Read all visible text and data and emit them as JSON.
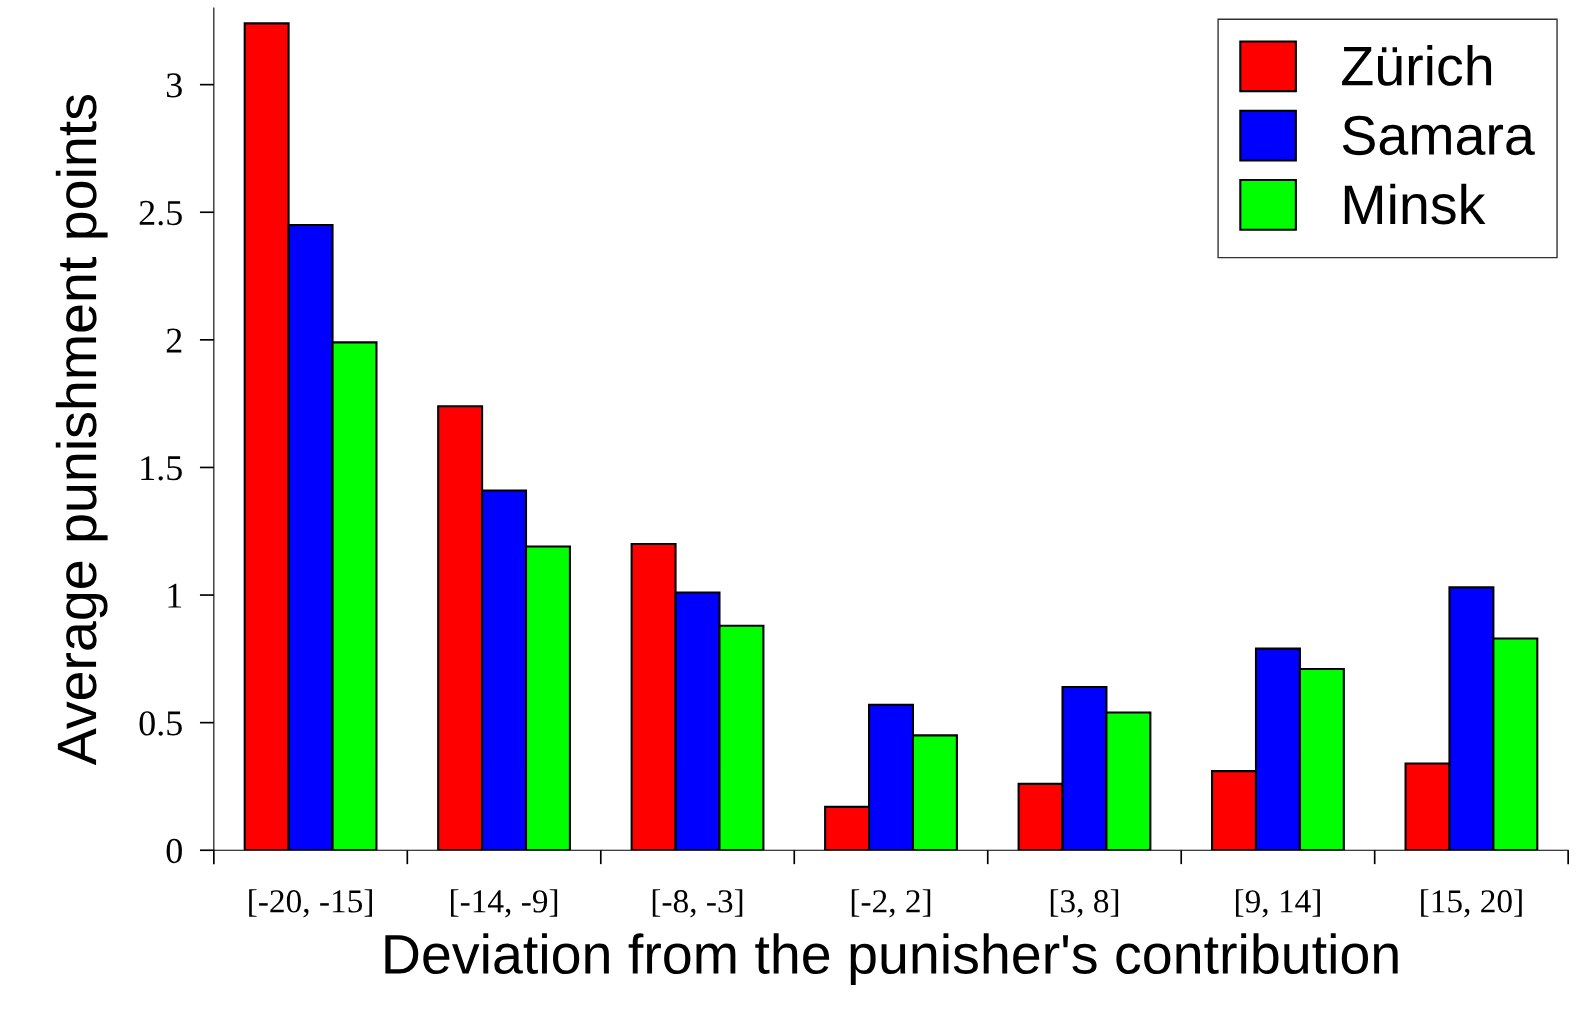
{
  "chart_data": {
    "type": "bar",
    "xlabel": "Deviation from the punisher's contribution",
    "ylabel": "Average punishment points",
    "categories": [
      "[-20, -15]",
      "[-14, -9]",
      "[-8, -3]",
      "[-2, 2]",
      "[3, 8]",
      "[9, 14]",
      "[15, 20]"
    ],
    "series": [
      {
        "name": "Zürich",
        "color": "#ff0000",
        "values": [
          3.24,
          1.74,
          1.2,
          0.17,
          0.26,
          0.31,
          0.34
        ]
      },
      {
        "name": "Samara",
        "color": "#0000ff",
        "values": [
          2.45,
          1.41,
          1.01,
          0.57,
          0.64,
          0.79,
          1.03
        ]
      },
      {
        "name": "Minsk",
        "color": "#00ff00",
        "values": [
          1.99,
          1.19,
          0.88,
          0.45,
          0.54,
          0.71,
          0.83
        ]
      }
    ],
    "ylim": [
      0,
      3.3
    ],
    "yticks": [
      0,
      0.5,
      1,
      1.5,
      2,
      2.5,
      3
    ],
    "grid": false,
    "legend": "top right"
  }
}
